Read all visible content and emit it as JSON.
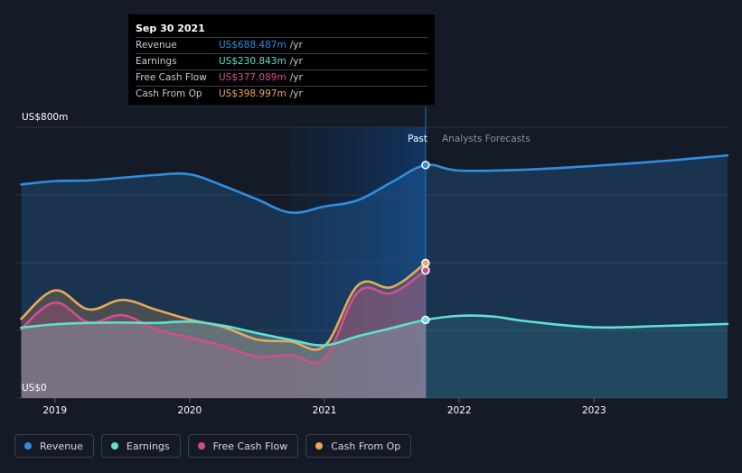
{
  "tooltip": {
    "date": "Sep 30 2021",
    "unit": "/yr",
    "rows": [
      {
        "label": "Revenue",
        "value": "US$688.487m",
        "color": "#2f8ee3"
      },
      {
        "label": "Earnings",
        "value": "US$230.843m",
        "color": "#5fe0d2"
      },
      {
        "label": "Free Cash Flow",
        "value": "US$377.089m",
        "color": "#d0508e"
      },
      {
        "label": "Cash From Op",
        "value": "US$398.997m",
        "color": "#e8a95a"
      }
    ]
  },
  "markers": {
    "past": "Past",
    "forecast": "Analysts Forecasts"
  },
  "legend": [
    {
      "label": "Revenue",
      "color": "#2f8ee3"
    },
    {
      "label": "Earnings",
      "color": "#5fe0d2"
    },
    {
      "label": "Free Cash Flow",
      "color": "#d0508e"
    },
    {
      "label": "Cash From Op",
      "color": "#e8a95a"
    }
  ],
  "chart_data": {
    "type": "line",
    "y_axis": {
      "top_label": "US$800m",
      "bottom_label": "US$0",
      "ylim": [
        0,
        800
      ]
    },
    "xlim": [
      2018.7,
      2023.99
    ],
    "x_ticks": [
      {
        "label": "2019",
        "value": 2019.0
      },
      {
        "label": "2020",
        "value": 2020.0
      },
      {
        "label": "2021",
        "value": 2021.0
      },
      {
        "label": "2022",
        "value": 2022.0
      },
      {
        "label": "2023",
        "value": 2023.0
      }
    ],
    "past_end": 2021.75,
    "shaded_from": 2020.75,
    "highlight_points": [
      {
        "series": "Revenue",
        "x": 2021.75,
        "y": 688.487
      },
      {
        "series": "Earnings",
        "x": 2021.75,
        "y": 230.843
      },
      {
        "series": "Free Cash Flow",
        "x": 2021.75,
        "y": 377.089
      },
      {
        "series": "Cash From Op",
        "x": 2021.75,
        "y": 398.997
      }
    ],
    "series": [
      {
        "name": "Revenue",
        "color": "#2f8ee3",
        "x": [
          2018.75,
          2019.0,
          2019.25,
          2019.5,
          2019.75,
          2020.0,
          2020.25,
          2020.5,
          2020.75,
          2021.0,
          2021.25,
          2021.5,
          2021.75,
          2022.0,
          2022.5,
          2023.0,
          2023.5,
          2023.99
        ],
        "y": [
          631,
          641,
          643,
          651,
          659,
          661,
          627,
          587,
          548,
          566,
          585,
          638,
          688,
          672,
          675,
          686,
          700,
          717
        ]
      },
      {
        "name": "Earnings",
        "color": "#5fe0d2",
        "x": [
          2018.75,
          2019.0,
          2019.25,
          2019.5,
          2019.75,
          2020.0,
          2020.25,
          2020.5,
          2020.75,
          2021.0,
          2021.25,
          2021.5,
          2021.75,
          2022.0,
          2022.25,
          2022.5,
          2023.0,
          2023.5,
          2023.99
        ],
        "y": [
          208,
          218,
          222,
          223,
          222,
          226,
          214,
          192,
          172,
          156,
          183,
          207,
          231,
          243,
          241,
          227,
          209,
          213,
          219
        ]
      },
      {
        "name": "Free Cash Flow",
        "color": "#d0508e",
        "x": [
          2018.75,
          2019.0,
          2019.25,
          2019.5,
          2019.75,
          2020.0,
          2020.25,
          2020.5,
          2020.75,
          2021.0,
          2021.25,
          2021.5,
          2021.75
        ],
        "y": [
          205,
          282,
          224,
          245,
          203,
          179,
          154,
          123,
          127,
          117,
          314,
          310,
          377
        ]
      },
      {
        "name": "Cash From Op",
        "color": "#e8a95a",
        "x": [
          2018.75,
          2019.0,
          2019.25,
          2019.5,
          2019.75,
          2020.0,
          2020.25,
          2020.5,
          2020.75,
          2021.0,
          2021.25,
          2021.5,
          2021.75
        ],
        "y": [
          234,
          318,
          262,
          290,
          261,
          232,
          210,
          173,
          167,
          154,
          334,
          328,
          399
        ]
      }
    ]
  }
}
